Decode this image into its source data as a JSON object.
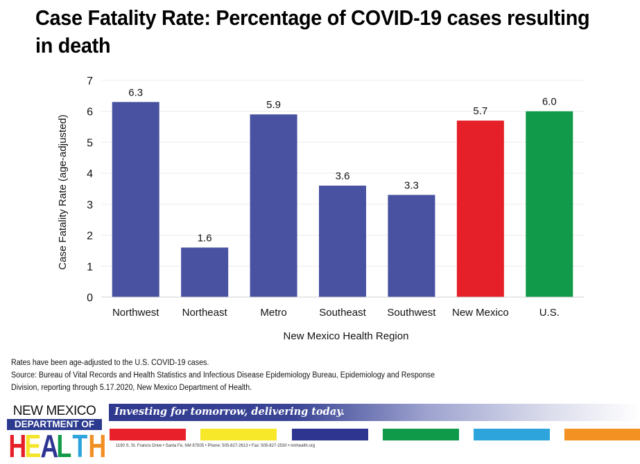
{
  "title": "Case Fatality Rate: Percentage of COVID-19 cases resulting in death",
  "chart_data": {
    "type": "bar",
    "title": "Case Fatality Rate: Percentage of COVID-19 cases resulting in death",
    "xlabel": "New Mexico Health Region",
    "ylabel": "Case Fatality Rate (age-adjusted)",
    "ylim": [
      0,
      7
    ],
    "yticks": [
      0,
      1,
      2,
      3,
      4,
      5,
      6,
      7
    ],
    "grid": true,
    "legend": "none",
    "categories": [
      "Northwest",
      "Northeast",
      "Metro",
      "Southeast",
      "Southwest",
      "New Mexico",
      "U.S."
    ],
    "values": [
      6.3,
      1.6,
      5.9,
      3.6,
      3.3,
      5.7,
      6.0
    ],
    "data_labels": [
      "6.3",
      "1.6",
      "5.9",
      "3.6",
      "3.3",
      "5.7",
      "6.0"
    ],
    "colors": [
      "#4852a0",
      "#4852a0",
      "#4852a0",
      "#4852a0",
      "#4852a0",
      "#e52028",
      "#109a4a"
    ]
  },
  "notes": [
    "Rates have been age-adjusted to the U.S. COVID-19 cases.",
    "Source: Bureau of Vital Records and Health Statistics and Infectious Disease Epidemiology Bureau, Epidemiology and Response",
    "Division, reporting through 5.17.2020, New Mexico Department of Health."
  ],
  "footer": {
    "logo_line1": "NEW MEXICO",
    "logo_line2": "DEPARTMENT OF",
    "logo_letters": [
      "H",
      "E",
      "A",
      "L",
      "T",
      "H"
    ],
    "logo_letter_colors": [
      "#e52028",
      "#f5e52a",
      "#2e3592",
      "#129a48",
      "#2ea3dc",
      "#f18f22"
    ],
    "slogan": "Investing for tomorrow, delivering today.",
    "stripe_colors": [
      "#e8202a",
      "#f8e82a",
      "#2e3590",
      "#0f9a4a",
      "#2ea4dc",
      "#f39222"
    ],
    "address": "1190 S. St. Francis Drive • Santa Fe, NM 87505 • Phone: 505-827-2613 • Fax: 505-827-2530 • nmhealth.org"
  }
}
